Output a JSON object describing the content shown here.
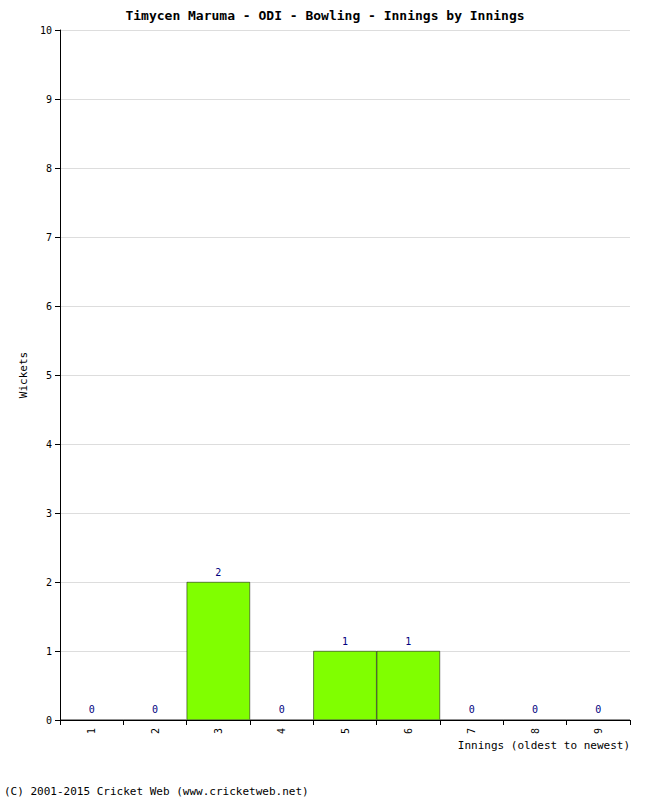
{
  "chart_data": {
    "type": "bar",
    "title": "Timycen Maruma - ODI - Bowling - Innings by Innings",
    "x_label": "Innings (oldest to newest)",
    "y_label": "Wickets",
    "categories": [
      "1",
      "2",
      "3",
      "4",
      "5",
      "6",
      "7",
      "8",
      "9"
    ],
    "values": [
      0,
      0,
      2,
      0,
      1,
      1,
      0,
      0,
      0
    ],
    "color": "#80ff00",
    "ylim": [
      0,
      10
    ],
    "yticks": [
      0,
      1,
      2,
      3,
      4,
      5,
      6,
      7,
      8,
      9,
      10
    ],
    "grid": true,
    "data_labels": true,
    "annotations": [
      "(C) 2001-2015 Cricket Web (www.cricketweb.net)"
    ]
  }
}
